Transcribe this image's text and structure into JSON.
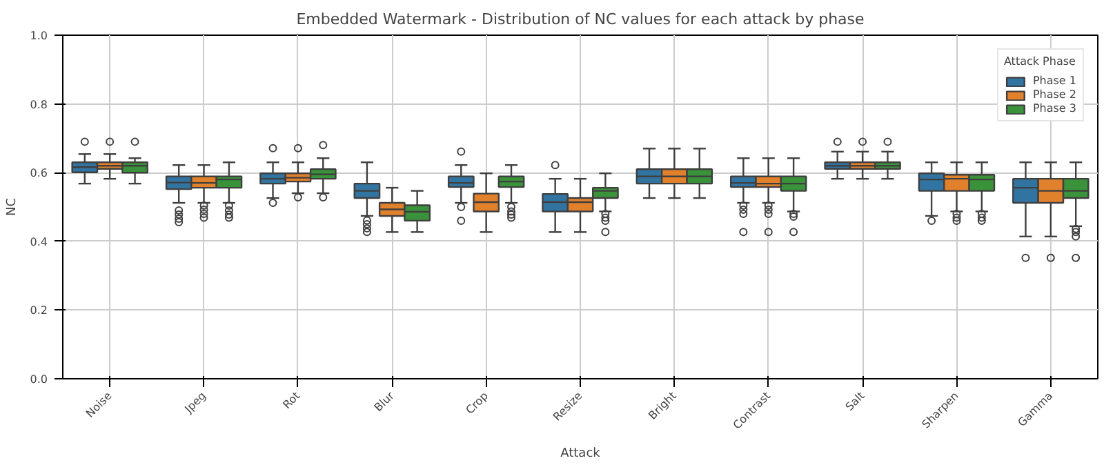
{
  "chart_data": {
    "type": "box",
    "title": "Embedded Watermark - Distribution of NC values for each attack by phase",
    "xlabel": "Attack",
    "ylabel": "NC",
    "legend_title": "Attack Phase",
    "legend": "top right",
    "grid": true,
    "categories": [
      "Noise",
      "Jpeg",
      "Rot",
      "Blur",
      "Crop",
      "Resize",
      "Bright",
      "Contrast",
      "Salt",
      "Sharpen",
      "Gamma"
    ],
    "ylim": [
      0,
      1
    ],
    "yticks": [
      {
        "value": 0,
        "label": "0.0"
      },
      {
        "value": 0.2,
        "label": "0.2"
      },
      {
        "value": 0.4,
        "label": "0.4"
      },
      {
        "value": 0.6,
        "label": "0.6"
      },
      {
        "value": 0.8,
        "label": "0.8"
      },
      {
        "value": 1,
        "label": "1.0"
      }
    ],
    "series": [
      {
        "name": "Phase 1",
        "color": "#3274a1",
        "boxes": [
          {
            "low": 0.568,
            "q1": 0.601,
            "median": 0.616,
            "q3": 0.63,
            "high": 0.654,
            "outliers": [
              0.69
            ]
          },
          {
            "low": 0.512,
            "q1": 0.552,
            "median": 0.571,
            "q3": 0.589,
            "high": 0.622,
            "outliers": [
              0.49,
              0.478,
              0.466,
              0.456
            ]
          },
          {
            "low": 0.526,
            "q1": 0.568,
            "median": 0.582,
            "q3": 0.598,
            "high": 0.63,
            "outliers": [
              0.671,
              0.512
            ]
          },
          {
            "low": 0.474,
            "q1": 0.526,
            "median": 0.547,
            "q3": 0.568,
            "high": 0.63,
            "outliers": [
              0.461,
              0.45,
              0.438,
              0.427
            ]
          },
          {
            "low": 0.512,
            "q1": 0.558,
            "median": 0.57,
            "q3": 0.589,
            "high": 0.622,
            "outliers": [
              0.661,
              0.5,
              0.46
            ]
          },
          {
            "low": 0.427,
            "q1": 0.487,
            "median": 0.514,
            "q3": 0.538,
            "high": 0.582,
            "outliers": [
              0.622
            ]
          },
          {
            "low": 0.526,
            "q1": 0.568,
            "median": 0.589,
            "q3": 0.61,
            "high": 0.67
          },
          {
            "low": 0.512,
            "q1": 0.558,
            "median": 0.57,
            "q3": 0.589,
            "high": 0.642,
            "outliers": [
              0.504,
              0.492,
              0.48,
              0.427
            ]
          },
          {
            "low": 0.582,
            "q1": 0.611,
            "median": 0.62,
            "q3": 0.63,
            "high": 0.661,
            "outliers": [
              0.69
            ]
          },
          {
            "low": 0.474,
            "q1": 0.547,
            "median": 0.58,
            "q3": 0.598,
            "high": 0.63,
            "outliers": [
              0.46
            ]
          },
          {
            "low": 0.414,
            "q1": 0.512,
            "median": 0.556,
            "q3": 0.582,
            "high": 0.63,
            "outliers": [
              0.352
            ]
          }
        ]
      },
      {
        "name": "Phase 2",
        "color": "#e1812c",
        "boxes": [
          {
            "low": 0.582,
            "q1": 0.611,
            "median": 0.62,
            "q3": 0.63,
            "high": 0.654,
            "outliers": [
              0.69
            ]
          },
          {
            "low": 0.512,
            "q1": 0.556,
            "median": 0.57,
            "q3": 0.589,
            "high": 0.622,
            "outliers": [
              0.504,
              0.492,
              0.48,
              0.469
            ]
          },
          {
            "low": 0.54,
            "q1": 0.574,
            "median": 0.585,
            "q3": 0.598,
            "high": 0.63,
            "outliers": [
              0.671,
              0.528
            ]
          },
          {
            "low": 0.427,
            "q1": 0.474,
            "median": 0.493,
            "q3": 0.512,
            "high": 0.556
          },
          {
            "low": 0.427,
            "q1": 0.487,
            "median": 0.514,
            "q3": 0.539,
            "high": 0.598
          },
          {
            "low": 0.427,
            "q1": 0.487,
            "median": 0.514,
            "q3": 0.526,
            "high": 0.582
          },
          {
            "low": 0.526,
            "q1": 0.568,
            "median": 0.589,
            "q3": 0.61,
            "high": 0.67
          },
          {
            "low": 0.512,
            "q1": 0.558,
            "median": 0.568,
            "q3": 0.589,
            "high": 0.642,
            "outliers": [
              0.504,
              0.492,
              0.48,
              0.427
            ]
          },
          {
            "low": 0.582,
            "q1": 0.611,
            "median": 0.62,
            "q3": 0.63,
            "high": 0.661,
            "outliers": [
              0.69
            ]
          },
          {
            "low": 0.487,
            "q1": 0.547,
            "median": 0.582,
            "q3": 0.594,
            "high": 0.63,
            "outliers": [
              0.48,
              0.469,
              0.46
            ]
          },
          {
            "low": 0.414,
            "q1": 0.512,
            "median": 0.547,
            "q3": 0.582,
            "high": 0.63,
            "outliers": [
              0.352
            ]
          }
        ]
      },
      {
        "name": "Phase 3",
        "color": "#3a923a",
        "boxes": [
          {
            "low": 0.568,
            "q1": 0.6,
            "median": 0.62,
            "q3": 0.63,
            "high": 0.642,
            "outliers": [
              0.69
            ]
          },
          {
            "low": 0.512,
            "q1": 0.556,
            "median": 0.58,
            "q3": 0.589,
            "high": 0.63,
            "outliers": [
              0.504,
              0.49,
              0.478,
              0.469
            ]
          },
          {
            "low": 0.54,
            "q1": 0.582,
            "median": 0.595,
            "q3": 0.61,
            "high": 0.642,
            "outliers": [
              0.68,
              0.528
            ]
          },
          {
            "low": 0.427,
            "q1": 0.46,
            "median": 0.486,
            "q3": 0.505,
            "high": 0.547
          },
          {
            "low": 0.512,
            "q1": 0.558,
            "median": 0.574,
            "q3": 0.589,
            "high": 0.622,
            "outliers": [
              0.5,
              0.487,
              0.478,
              0.469
            ]
          },
          {
            "low": 0.487,
            "q1": 0.526,
            "median": 0.547,
            "q3": 0.556,
            "high": 0.598,
            "outliers": [
              0.48,
              0.469,
              0.46,
              0.427
            ]
          },
          {
            "low": 0.526,
            "q1": 0.568,
            "median": 0.589,
            "q3": 0.61,
            "high": 0.67
          },
          {
            "low": 0.487,
            "q1": 0.547,
            "median": 0.568,
            "q3": 0.589,
            "high": 0.642,
            "outliers": [
              0.48,
              0.472,
              0.427
            ]
          },
          {
            "low": 0.582,
            "q1": 0.611,
            "median": 0.62,
            "q3": 0.63,
            "high": 0.661,
            "outliers": [
              0.69
            ]
          },
          {
            "low": 0.487,
            "q1": 0.547,
            "median": 0.58,
            "q3": 0.594,
            "high": 0.63,
            "outliers": [
              0.48,
              0.469,
              0.46
            ]
          },
          {
            "low": 0.444,
            "q1": 0.526,
            "median": 0.547,
            "q3": 0.582,
            "high": 0.63,
            "outliers": [
              0.436,
              0.427,
              0.414,
              0.352
            ]
          }
        ]
      }
    ]
  }
}
